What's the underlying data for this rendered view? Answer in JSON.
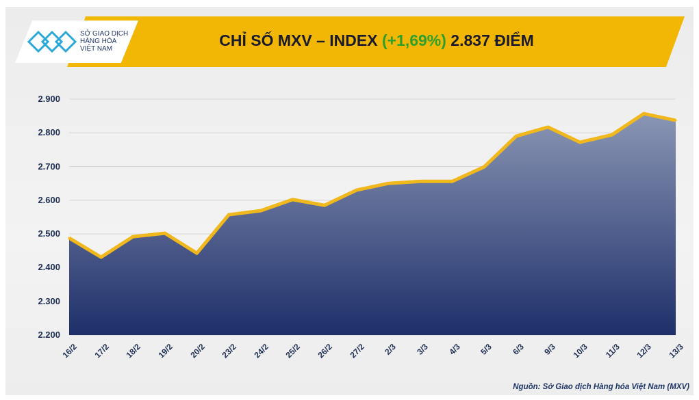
{
  "header": {
    "logo_lines": [
      "SỞ GIAO DỊCH",
      "HÀNG HÓA",
      "VIỆT NAM"
    ],
    "title_prefix": "CHỈ SỐ MXV – INDEX ",
    "title_change": "(+1,69%)",
    "title_suffix": " 2.837 ĐIỂM"
  },
  "source": "Nguồn: Sở Giao dịch Hàng hóa Việt Nam (MXV)",
  "colors": {
    "banner": "#f2b705",
    "line": "#f0b81c",
    "area_top": "#8a96b4",
    "area_bottom": "#1e2f6a",
    "change": "#2e9e2e"
  },
  "chart_data": {
    "type": "area",
    "title": "CHỈ SỐ MXV – INDEX (+1,69%) 2.837 ĐIỂM",
    "categories": [
      "16/2",
      "17/2",
      "18/2",
      "19/2",
      "20/2",
      "23/2",
      "24/2",
      "25/2",
      "26/2",
      "27/2",
      "2/3",
      "3/3",
      "4/3",
      "5/3",
      "6/3",
      "9/3",
      "10/3",
      "11/3",
      "12/3",
      "13/3"
    ],
    "values": [
      2488,
      2431,
      2492,
      2502,
      2443,
      2557,
      2569,
      2602,
      2585,
      2630,
      2650,
      2656,
      2656,
      2699,
      2790,
      2817,
      2772,
      2794,
      2857,
      2837
    ],
    "yticks": [
      "2.200",
      "2.300",
      "2.400",
      "2.500",
      "2.600",
      "2.700",
      "2.800",
      "2.900"
    ],
    "ylim": [
      2200,
      2900
    ],
    "grid": true,
    "legend": "none"
  }
}
